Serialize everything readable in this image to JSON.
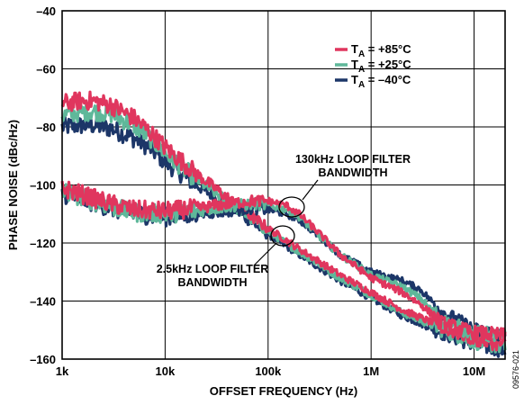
{
  "chart_data": {
    "type": "line",
    "x_scale": "log",
    "y_scale": "linear",
    "xlim": [
      1000,
      20000000
    ],
    "ylim": [
      -160,
      -40
    ],
    "grid": true,
    "xlabel": "OFFSET FREQUENCY (Hz)",
    "ylabel": "PHASE NOISE (dBc/Hz)",
    "x_ticks": [
      {
        "value": 1000,
        "label": "1k"
      },
      {
        "value": 10000,
        "label": "10k"
      },
      {
        "value": 100000,
        "label": "100k"
      },
      {
        "value": 1000000,
        "label": "1M"
      },
      {
        "value": 10000000,
        "label": "10M"
      }
    ],
    "y_ticks": [
      {
        "value": -40,
        "label": "–40"
      },
      {
        "value": -60,
        "label": "–60"
      },
      {
        "value": -80,
        "label": "–80"
      },
      {
        "value": -100,
        "label": "–100"
      },
      {
        "value": -120,
        "label": "–120"
      },
      {
        "value": -140,
        "label": "–140"
      },
      {
        "value": -160,
        "label": "–160"
      }
    ],
    "legend": {
      "position": "top-right",
      "entries": [
        {
          "prefix": "T",
          "subscript": "A",
          "suffix": " = +85°C",
          "color": "#e0365e"
        },
        {
          "prefix": "T",
          "subscript": "A",
          "suffix": " = +25°C",
          "color": "#5fb89a"
        },
        {
          "prefix": "T",
          "subscript": "A",
          "suffix": " = –40°C",
          "color": "#1c3668"
        }
      ]
    },
    "series": [
      {
        "group": "2.5kHz loop filter bandwidth",
        "temperature": "T_A = -40°C",
        "color": "#1c3668",
        "x": [
          1000,
          1500,
          2000,
          3000,
          5000,
          7000,
          10000,
          20000,
          50000,
          100000,
          200000,
          500000,
          1000000,
          2000000,
          5000000,
          10000000,
          20000000
        ],
        "y": [
          -80,
          -79.5,
          -79.5,
          -80.5,
          -84,
          -87,
          -92,
          -100,
          -109,
          -117,
          -124,
          -133,
          -139,
          -145,
          -151,
          -155,
          -157
        ]
      },
      {
        "group": "2.5kHz loop filter bandwidth",
        "temperature": "T_A = +25°C",
        "color": "#5fb89a",
        "x": [
          1000,
          1500,
          2000,
          3000,
          5000,
          7000,
          10000,
          20000,
          50000,
          100000,
          200000,
          500000,
          1000000,
          2000000,
          5000000,
          10000000,
          20000000
        ],
        "y": [
          -76,
          -75,
          -74.5,
          -75.5,
          -79.5,
          -83.5,
          -89,
          -98,
          -108,
          -116,
          -123,
          -132,
          -138,
          -144,
          -150,
          -154,
          -156
        ]
      },
      {
        "group": "2.5kHz loop filter bandwidth",
        "temperature": "T_A = +85°C",
        "color": "#e0365e",
        "x": [
          1000,
          1500,
          2000,
          3000,
          5000,
          7000,
          10000,
          20000,
          50000,
          100000,
          200000,
          500000,
          1000000,
          2000000,
          5000000,
          10000000,
          20000000
        ],
        "y": [
          -72,
          -71,
          -71,
          -72.5,
          -77,
          -81.5,
          -87,
          -96,
          -107,
          -115,
          -122,
          -131,
          -137,
          -143,
          -149,
          -153,
          -155
        ]
      },
      {
        "group": "130kHz loop filter bandwidth",
        "temperature": "T_A = -40°C",
        "color": "#1c3668",
        "x": [
          1000,
          2000,
          3000,
          5000,
          10000,
          20000,
          40000,
          70000,
          100000,
          150000,
          200000,
          300000,
          500000,
          1000000,
          2000000,
          3000000,
          5000000,
          10000000,
          20000000
        ],
        "y": [
          -103,
          -106,
          -108,
          -110,
          -111,
          -110,
          -109,
          -108,
          -108.5,
          -110,
          -112,
          -117,
          -124,
          -130,
          -133,
          -136,
          -144,
          -150,
          -152
        ]
      },
      {
        "group": "130kHz loop filter bandwidth",
        "temperature": "T_A = +25°C",
        "color": "#5fb89a",
        "x": [
          1000,
          2000,
          3000,
          5000,
          10000,
          20000,
          40000,
          70000,
          100000,
          150000,
          200000,
          300000,
          500000,
          1000000,
          2000000,
          3000000,
          5000000,
          10000000,
          20000000
        ],
        "y": [
          -102,
          -105.5,
          -107.5,
          -109.5,
          -110,
          -109,
          -107.5,
          -106.5,
          -107,
          -108.5,
          -111,
          -117,
          -124,
          -131,
          -135,
          -139,
          -147,
          -151,
          -152
        ]
      },
      {
        "group": "130kHz loop filter bandwidth",
        "temperature": "T_A = +85°C",
        "color": "#e0365e",
        "x": [
          1000,
          2000,
          3000,
          5000,
          10000,
          20000,
          40000,
          70000,
          100000,
          150000,
          200000,
          300000,
          500000,
          1000000,
          2000000,
          3000000,
          5000000,
          10000000,
          20000000
        ],
        "y": [
          -101,
          -104.5,
          -106.5,
          -108.5,
          -109,
          -108,
          -106.5,
          -105.5,
          -105.5,
          -107,
          -110,
          -116,
          -124,
          -132,
          -137,
          -141,
          -148,
          -151,
          -152
        ]
      }
    ],
    "annotations": [
      {
        "lines": [
          "130kHz LOOP FILTER",
          "BANDWIDTH"
        ],
        "points_to": {
          "x": 150000,
          "y": -109
        }
      },
      {
        "lines": [
          "2.5kHz LOOP FILTER",
          "BANDWIDTH"
        ],
        "points_to": {
          "x": 120000,
          "y": -116
        }
      }
    ],
    "figure_id": "09576-021"
  }
}
